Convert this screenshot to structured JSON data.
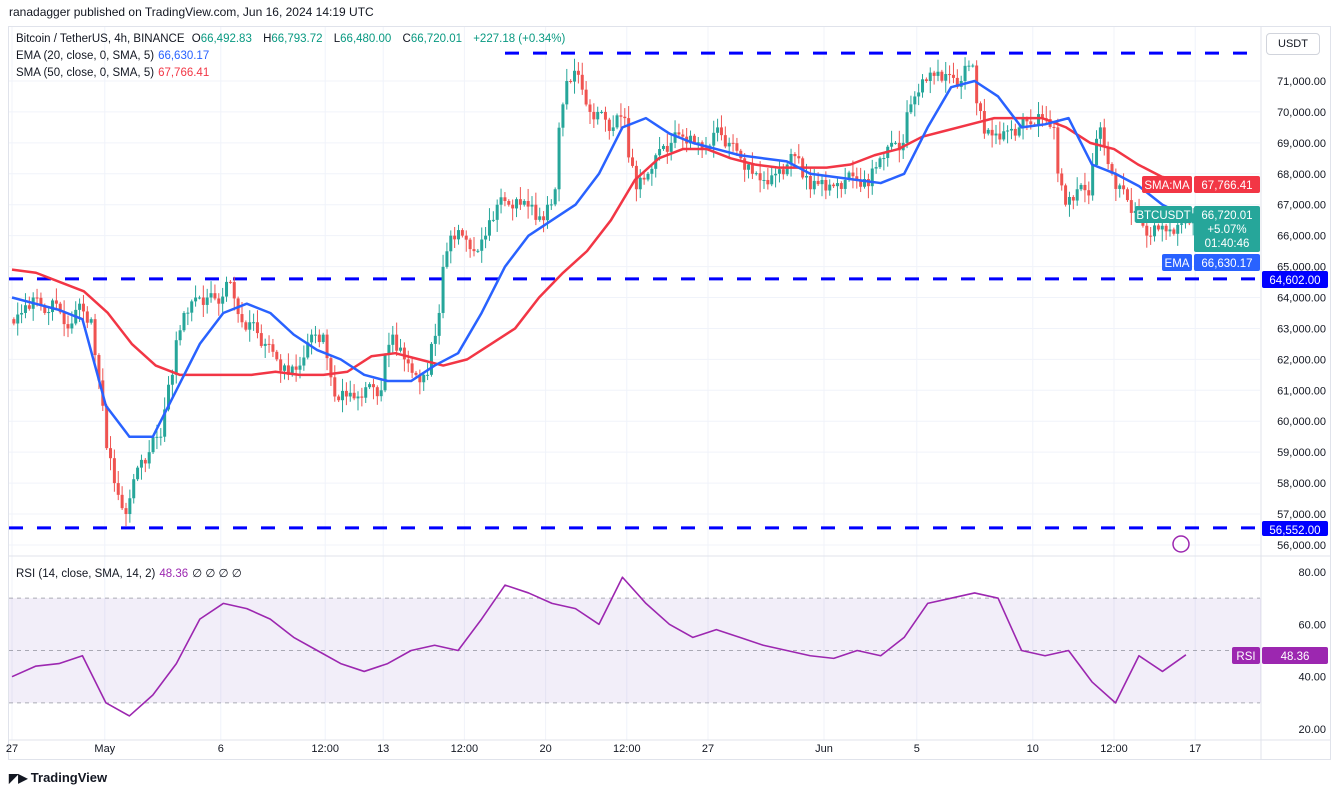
{
  "header": {
    "published": "ranadagger published on TradingView.com, Jun 16, 2024 14:19 UTC",
    "symbol": "Bitcoin / TetherUS, 4h, BINANCE",
    "o_label": "O",
    "o": "66,492.83",
    "h_label": "H",
    "h": "66,793.72",
    "l_label": "L",
    "l": "66,480.00",
    "c_label": "C",
    "c": "66,720.01",
    "change": "+227.18 (+0.34%)",
    "ema_label": "EMA (20, close, 0, SMA, 5)",
    "ema_value": "66,630.17",
    "sma_label": "SMA (50, close, 0, SMA, 5)",
    "sma_value": "67,766.41",
    "rsi_label": "RSI (14, close, SMA, 14, 2)",
    "rsi_value": "48.36",
    "rsi_extra": "∅ ∅ ∅ ∅"
  },
  "currency_button": "USDT",
  "footer": {
    "logo": "TradingView"
  },
  "colors": {
    "up": "#26a69a",
    "down": "#ef5350",
    "ema": "#2962ff",
    "sma": "#f23645",
    "rsi": "#9c27b0",
    "level": "#0000ff"
  },
  "price_labels": {
    "sma_tag": "SMA:MA",
    "sma": "67,766.41",
    "sym_tag": "BTCUSDT",
    "last": "66,720.01",
    "pct": "+5.07%",
    "countdown": "01:40:46",
    "ema_tag": "EMA",
    "ema": "66,630.17",
    "level_top": "64,602.00",
    "level_bottom": "56,552.00",
    "rsi_tag": "RSI",
    "rsi": "48.36"
  },
  "chart_data": [
    {
      "type": "candlestick",
      "timeframe": "4h",
      "x_start": "Apr 27",
      "x_end": "Jun 16",
      "y_ticks": [
        "71,000.00",
        "70,000.00",
        "69,000.00",
        "68,000.00",
        "67,000.00",
        "66,000.00",
        "65,000.00",
        "64,000.00",
        "63,000.00",
        "62,000.00",
        "61,000.00",
        "60,000.00",
        "59,000.00",
        "58,000.00",
        "57,000.00",
        "56,000.00"
      ],
      "y_tick_values": [
        71000,
        70000,
        69000,
        68000,
        67000,
        66000,
        65000,
        64000,
        63000,
        62000,
        61000,
        60000,
        59000,
        58000,
        57000,
        56000
      ],
      "ylim": [
        55700,
        72100
      ],
      "x_ticks": [
        "27",
        "May",
        "6",
        "12:00",
        "13",
        "12:00",
        "20",
        "12:00",
        "27",
        "Jun",
        "5",
        "10",
        "12:00",
        "17"
      ],
      "x_tick_days": [
        0,
        4,
        9,
        13.5,
        16,
        19.5,
        23,
        26.5,
        30,
        35,
        39,
        44,
        47.5,
        51
      ],
      "closes_12h": [
        63.5,
        64.0,
        63.5,
        63.8,
        63.0,
        63.8,
        63.3,
        60.5,
        58.0,
        57.0,
        58.5,
        59.0,
        59.5,
        61.5,
        63.5,
        64.0,
        64.0,
        63.8,
        64.5,
        63.2,
        63.2,
        62.5,
        62.0,
        61.5,
        61.8,
        62.8,
        62.8,
        60.8,
        60.8,
        60.8,
        61.2,
        61.0,
        62.8,
        62.0,
        61.5,
        61.5,
        63.5,
        66.0,
        66.0,
        65.5,
        66.0,
        67.0,
        67.0,
        67.0,
        67.0,
        66.5,
        67.5,
        71.0,
        71.2,
        70.0,
        70.0,
        69.5,
        69.8,
        67.5,
        68.0,
        68.8,
        69.0,
        69.2,
        69.0,
        68.8,
        69.5,
        69.0,
        68.5,
        68.0,
        67.8,
        68.0,
        68.3,
        68.5,
        67.5,
        67.8,
        67.6,
        67.8,
        67.8,
        67.6,
        68.5,
        69.0,
        69.0,
        70.5,
        71.0,
        71.3,
        71.2,
        71.0,
        71.5,
        69.3,
        69.3,
        69.4,
        69.5,
        69.6,
        69.8,
        69.5,
        67.0,
        67.5,
        67.3,
        69.5,
        68.0,
        67.5,
        66.8,
        66.0,
        66.2,
        66.2,
        66.4,
        66.72
      ],
      "ema20_daily": [
        64.0,
        63.8,
        63.6,
        63.3,
        60.5,
        59.5,
        59.5,
        61.0,
        62.5,
        63.5,
        63.8,
        63.5,
        62.8,
        62.3,
        62.0,
        61.5,
        61.3,
        61.3,
        61.8,
        62.2,
        63.5,
        65.0,
        66.0,
        66.5,
        67.0,
        68.0,
        69.5,
        69.8,
        69.3,
        69.0,
        68.8,
        68.6,
        68.5,
        68.4,
        68.0,
        67.9,
        67.8,
        67.7,
        68.0,
        69.5,
        70.8,
        71.0,
        70.5,
        69.5,
        69.6,
        69.8,
        68.3,
        68.0,
        67.6,
        67.0,
        66.63
      ],
      "sma50_daily": [
        64.9,
        64.8,
        64.5,
        64.2,
        63.5,
        62.5,
        61.8,
        61.5,
        61.5,
        61.5,
        61.5,
        61.6,
        61.5,
        61.5,
        61.6,
        62.1,
        62.2,
        62.0,
        61.8,
        62.0,
        62.5,
        63.0,
        64.0,
        64.8,
        65.5,
        66.5,
        67.8,
        68.5,
        68.8,
        68.8,
        68.5,
        68.3,
        68.2,
        68.2,
        68.2,
        68.3,
        68.6,
        68.8,
        69.2,
        69.4,
        69.6,
        69.8,
        69.8,
        69.8,
        69.5,
        69.0,
        68.8,
        68.3,
        67.9,
        67.77
      ],
      "unit_note": "closes/ema/sma in thousands USDT",
      "levels": [
        71900,
        64602,
        56552
      ]
    },
    {
      "type": "line",
      "name": "RSI",
      "y_ticks": [
        "80.00",
        "60.00",
        "40.00",
        "20.00"
      ],
      "y_tick_values": [
        80,
        60,
        40,
        20
      ],
      "band": [
        30,
        70
      ],
      "ylim": [
        18,
        84
      ],
      "rsi_daily": [
        40,
        44,
        45,
        48,
        30,
        25,
        33,
        45,
        62,
        68,
        66,
        62,
        55,
        50,
        45,
        42,
        45,
        50,
        52,
        50,
        62,
        75,
        72,
        68,
        66,
        60,
        78,
        68,
        60,
        55,
        58,
        55,
        52,
        50,
        48,
        47,
        50,
        48,
        55,
        68,
        70,
        72,
        70,
        50,
        48,
        50,
        38,
        30,
        48,
        42,
        48.36
      ]
    }
  ]
}
